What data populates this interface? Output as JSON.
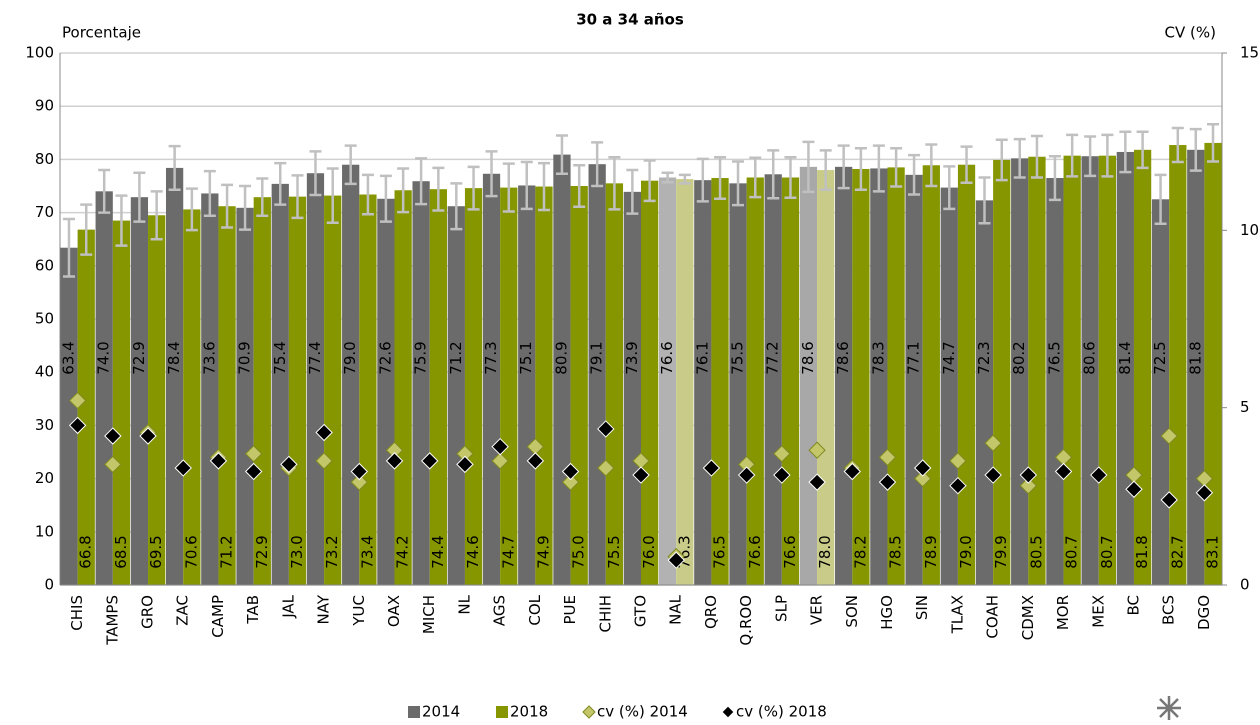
{
  "chart_data": {
    "type": "bar",
    "title": "30 a 34 años",
    "y_label": "Porcentaje",
    "y2_label": "CV (%)",
    "categories": [
      "CHIS",
      "TAMPS",
      "GRO",
      "ZAC",
      "CAMP",
      "TAB",
      "JAL",
      "NAY",
      "YUC",
      "OAX",
      "MICH",
      "NL",
      "AGS",
      "COL",
      "PUE",
      "CHIH",
      "GTO",
      "NAL",
      "QRO",
      "Q.ROO",
      "SLP",
      "VER",
      "SON",
      "HGO",
      "SIN",
      "TLAX",
      "COAH",
      "CDMX",
      "MOR",
      "MEX",
      "BC",
      "BCS",
      "DGO"
    ],
    "ylim": [
      0,
      100
    ],
    "yticks": [
      0,
      10,
      20,
      30,
      40,
      50,
      60,
      70,
      80,
      90,
      100
    ],
    "y2lim": [
      0,
      15
    ],
    "y2ticks": [
      0,
      5,
      10,
      15
    ],
    "grid": true,
    "legend": "bottom",
    "series": [
      {
        "name": "2014",
        "type": "bar",
        "color": "#6b6b6b",
        "colors": [
          "#6b6b6b",
          "#6b6b6b",
          "#6b6b6b",
          "#6b6b6b",
          "#6b6b6b",
          "#6b6b6b",
          "#6b6b6b",
          "#6b6b6b",
          "#6b6b6b",
          "#6b6b6b",
          "#6b6b6b",
          "#6b6b6b",
          "#6b6b6b",
          "#6b6b6b",
          "#6b6b6b",
          "#6b6b6b",
          "#6b6b6b",
          "#b2b2b2",
          "#6b6b6b",
          "#6b6b6b",
          "#6b6b6b",
          "#a8a8a8",
          "#6b6b6b",
          "#6b6b6b",
          "#6b6b6b",
          "#6b6b6b",
          "#6b6b6b",
          "#6b6b6b",
          "#6b6b6b",
          "#6b6b6b",
          "#6b6b6b",
          "#6b6b6b",
          "#6b6b6b"
        ],
        "values": [
          63.4,
          74.0,
          72.9,
          78.4,
          73.6,
          70.9,
          75.4,
          77.4,
          79.0,
          72.6,
          75.9,
          71.2,
          77.3,
          75.1,
          80.9,
          79.1,
          73.9,
          76.6,
          76.1,
          75.5,
          77.2,
          78.6,
          78.6,
          78.3,
          77.1,
          74.7,
          72.3,
          80.2,
          76.5,
          80.6,
          81.4,
          72.5,
          81.8
        ],
        "value_labels": [
          "63.4",
          "74.0",
          "72.9",
          "78.4",
          "73.6",
          "70.9",
          "75.4",
          "77.4",
          "79.0",
          "72.6",
          "75.9",
          "71.2",
          "77.3",
          "75.1",
          "80.9",
          "79.1",
          "73.9",
          "76.6",
          "76.1",
          "75.5",
          "77.2",
          "78.6",
          "78.6",
          "78.3",
          "77.1",
          "74.7",
          "72.3",
          "80.2",
          "76.5",
          "80.6",
          "81.4",
          "72.5",
          "81.8"
        ],
        "errors": [
          5.4,
          4.0,
          4.6,
          4.1,
          4.2,
          4.1,
          3.9,
          4.1,
          3.6,
          4.3,
          4.3,
          4.3,
          4.2,
          4.4,
          3.6,
          4.1,
          4.1,
          0.9,
          4.0,
          4.1,
          4.5,
          4.7,
          4.0,
          4.3,
          3.7,
          4.0,
          4.3,
          3.6,
          4.1,
          3.7,
          3.8,
          4.6,
          3.9
        ]
      },
      {
        "name": "2018",
        "type": "bar",
        "color": "#869600",
        "colors": [
          "#869600",
          "#869600",
          "#869600",
          "#869600",
          "#869600",
          "#869600",
          "#869600",
          "#869600",
          "#869600",
          "#869600",
          "#869600",
          "#869600",
          "#869600",
          "#869600",
          "#869600",
          "#869600",
          "#869600",
          "#c9cc88",
          "#869600",
          "#869600",
          "#869600",
          "#c9cc88",
          "#869600",
          "#869600",
          "#869600",
          "#869600",
          "#869600",
          "#869600",
          "#869600",
          "#869600",
          "#869600",
          "#869600",
          "#869600"
        ],
        "values": [
          66.8,
          68.5,
          69.5,
          70.6,
          71.2,
          72.9,
          73.0,
          73.2,
          73.4,
          74.2,
          74.4,
          74.6,
          74.7,
          74.9,
          75.0,
          75.5,
          76.0,
          76.3,
          76.5,
          76.6,
          76.6,
          78.0,
          78.2,
          78.5,
          78.9,
          79.0,
          79.9,
          80.5,
          80.7,
          80.7,
          81.8,
          82.7,
          83.1
        ],
        "value_labels": [
          "66.8",
          "68.5",
          "69.5",
          "70.6",
          "71.2",
          "72.9",
          "73.0",
          "73.2",
          "73.4",
          "74.2",
          "74.4",
          "74.6",
          "74.7",
          "74.9",
          "75.0",
          "75.5",
          "76.0",
          "76.3",
          "76.5",
          "76.6",
          "76.6",
          "78.0",
          "78.2",
          "78.5",
          "78.9",
          "79.0",
          "79.9",
          "80.5",
          "80.7",
          "80.7",
          "81.8",
          "82.7",
          "83.1"
        ],
        "errors": [
          4.7,
          4.7,
          4.5,
          3.9,
          4.0,
          3.5,
          4.0,
          5.1,
          3.7,
          4.1,
          4.0,
          4.0,
          4.5,
          4.4,
          3.9,
          4.9,
          3.8,
          0.8,
          3.9,
          3.7,
          3.8,
          3.7,
          3.9,
          3.6,
          3.9,
          3.4,
          3.8,
          3.9,
          3.9,
          3.9,
          3.4,
          3.2,
          3.5
        ]
      },
      {
        "name": "cv (%) 2014",
        "type": "marker",
        "axis": "y2",
        "color": "#c4c66a",
        "values": [
          5.2,
          3.4,
          4.3,
          3.3,
          3.6,
          3.7,
          3.3,
          3.5,
          2.9,
          3.8,
          3.5,
          3.7,
          3.5,
          3.9,
          2.9,
          3.3,
          3.5,
          0.8,
          3.3,
          3.4,
          3.7,
          3.8,
          3.3,
          3.6,
          3.0,
          3.5,
          4.0,
          2.8,
          3.6,
          3.1,
          3.1,
          4.2,
          3.0
        ]
      },
      {
        "name": "cv (%) 2018",
        "type": "marker",
        "axis": "y2",
        "color": "#000000",
        "values": [
          4.5,
          4.2,
          4.2,
          3.3,
          3.5,
          3.2,
          3.4,
          4.3,
          3.2,
          3.5,
          3.5,
          3.4,
          3.9,
          3.5,
          3.2,
          4.4,
          3.1,
          0.7,
          3.3,
          3.1,
          3.1,
          2.9,
          3.2,
          2.9,
          3.3,
          2.8,
          3.1,
          3.1,
          3.2,
          3.1,
          2.7,
          2.4,
          2.6
        ]
      }
    ]
  }
}
